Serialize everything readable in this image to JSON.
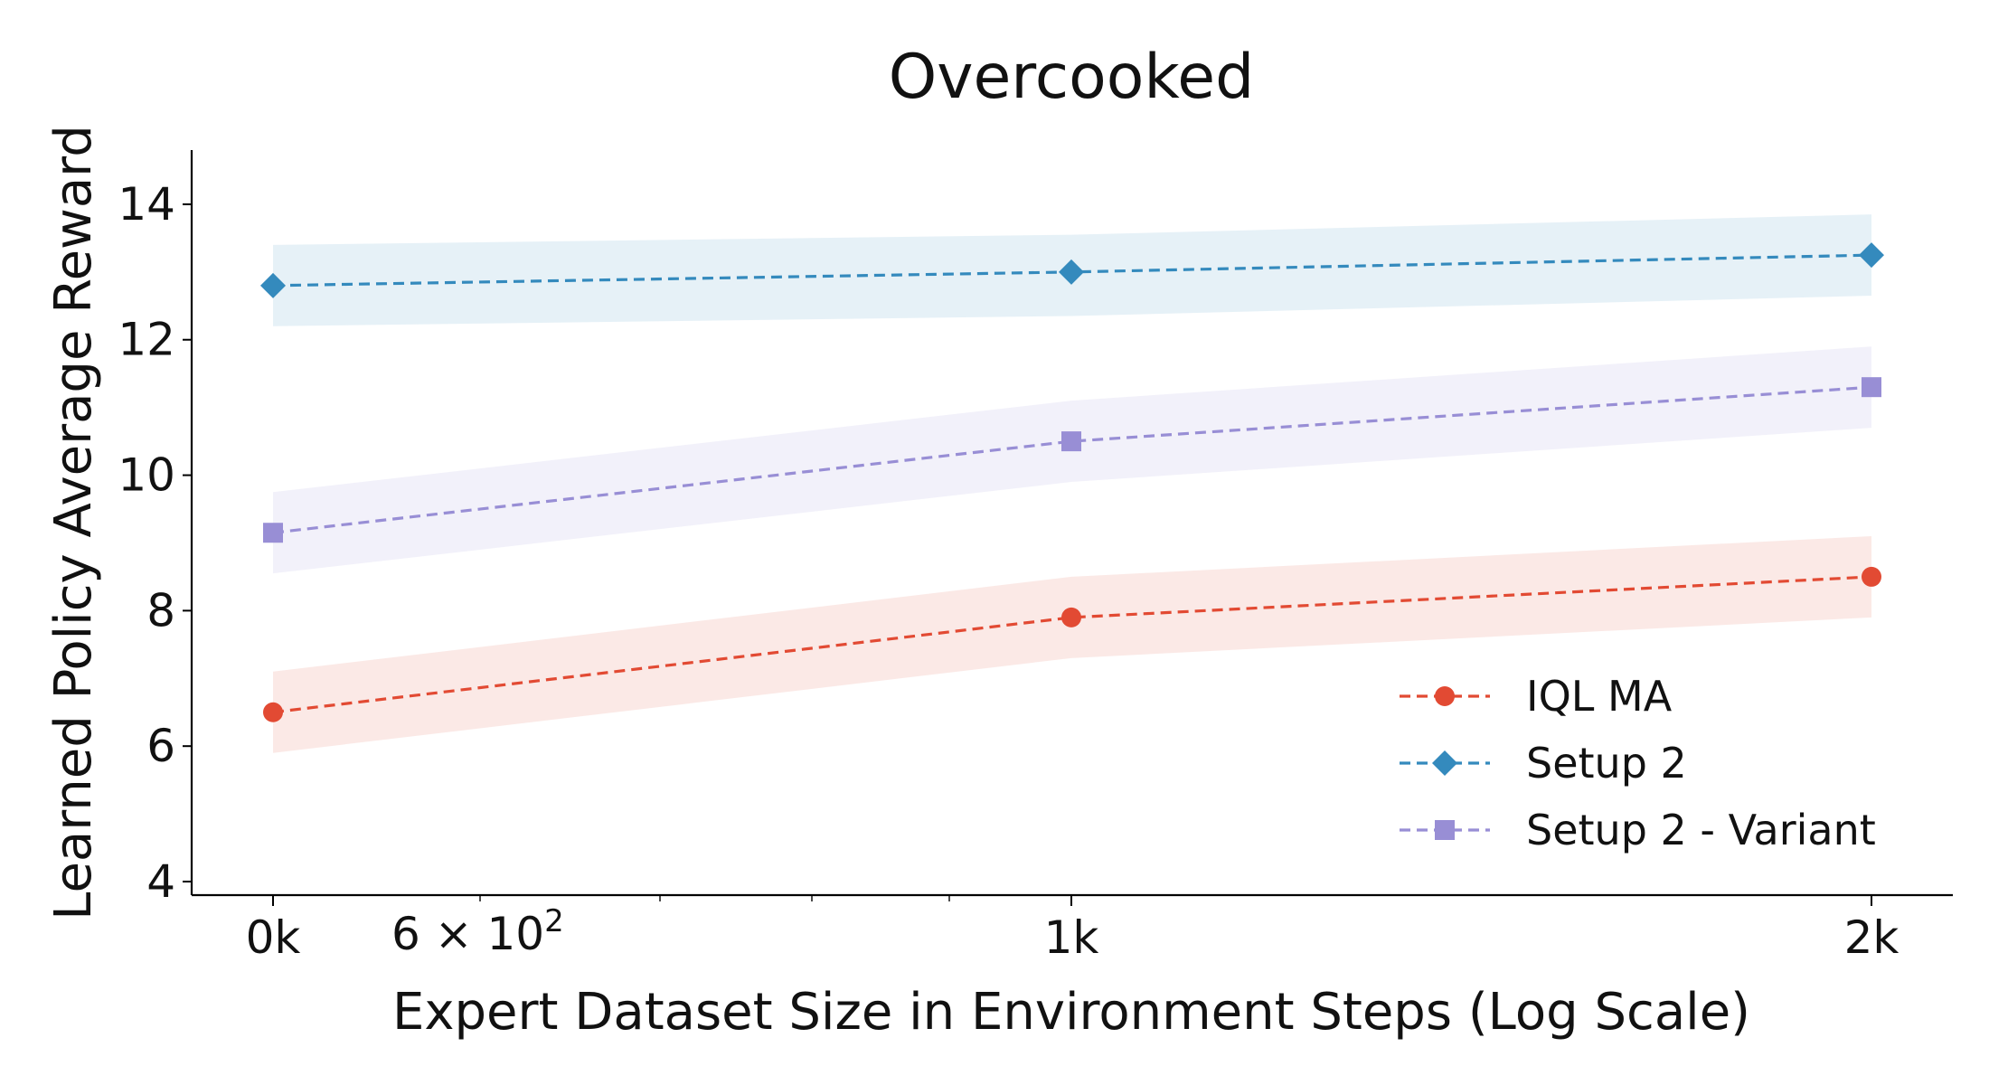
{
  "chart_data": {
    "type": "line",
    "title": "Overcooked",
    "xlabel": "Expert Dataset Size in Environment Steps (Log Scale)",
    "ylabel": "Learned Policy Average Reward",
    "x_scale": "log",
    "x_tick_labels": [
      "0k",
      "1k",
      "2k"
    ],
    "x_minor_tick_label_base": "6 × 10",
    "x_minor_tick_label_exp": "2",
    "y_ticks": [
      4,
      6,
      8,
      10,
      12,
      14
    ],
    "ylim": [
      3.8,
      14.8
    ],
    "grid": false,
    "legend_position": "lower right",
    "series": [
      {
        "name": "IQL MA",
        "color": "#e24a33",
        "marker": "circle",
        "linestyle": "dashed",
        "values": [
          6.5,
          7.9,
          8.5
        ],
        "lower": [
          5.9,
          7.3,
          7.9
        ],
        "upper": [
          7.1,
          8.5,
          9.1
        ]
      },
      {
        "name": "Setup 2",
        "color": "#348abd",
        "marker": "diamond",
        "linestyle": "dashed",
        "values": [
          12.8,
          13.0,
          13.25
        ],
        "lower": [
          12.2,
          12.35,
          12.65
        ],
        "upper": [
          13.4,
          13.55,
          13.85
        ]
      },
      {
        "name": "Setup 2 - Variant",
        "color": "#988ed5",
        "marker": "square",
        "linestyle": "dashed",
        "values": [
          9.15,
          10.5,
          11.3
        ],
        "lower": [
          8.55,
          9.9,
          10.7
        ],
        "upper": [
          9.75,
          11.1,
          11.9
        ]
      }
    ]
  }
}
